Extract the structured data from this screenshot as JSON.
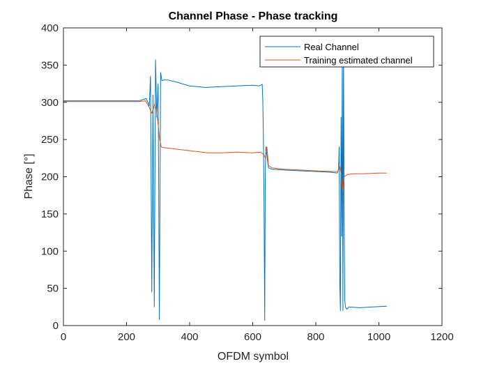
{
  "chart_data": {
    "type": "line",
    "title": "Channel Phase - Phase tracking",
    "xlabel": "OFDM symbol",
    "ylabel": "Phase [°]",
    "xlim": [
      0,
      1200
    ],
    "ylim": [
      0,
      400
    ],
    "xticks": [
      "0",
      "200",
      "400",
      "600",
      "800",
      "1000",
      "1200"
    ],
    "yticks": [
      "0",
      "50",
      "100",
      "150",
      "200",
      "250",
      "300",
      "350",
      "400"
    ],
    "grid": false,
    "legend_position": "top-right",
    "colors": {
      "real": "#0072BD",
      "training": "#D95319"
    },
    "series": [
      {
        "name": "Real Channel",
        "x": [
          0,
          50,
          100,
          150,
          200,
          240,
          262,
          268,
          272,
          276,
          280,
          284,
          288,
          292,
          296,
          300,
          304,
          308,
          312,
          318,
          330,
          360,
          400,
          450,
          500,
          550,
          600,
          620,
          630,
          632,
          634,
          636,
          638,
          640,
          642,
          646,
          650,
          660,
          700,
          750,
          800,
          850,
          868,
          872,
          874,
          876,
          878,
          880,
          882,
          884,
          886,
          888,
          890,
          892,
          894,
          898,
          905,
          940,
          980,
          1025
        ],
        "y": [
          302,
          302,
          302,
          302,
          302,
          302,
          305,
          300,
          295,
          335,
          45,
          310,
          25,
          357,
          280,
          325,
          8,
          340,
          329,
          330,
          330,
          327,
          322,
          320,
          321,
          322,
          323,
          322,
          324,
          300,
          250,
          150,
          7,
          210,
          240,
          225,
          212,
          210,
          209,
          208,
          207,
          206,
          205,
          210,
          240,
          55,
          20,
          280,
          120,
          360,
          20,
          380,
          140,
          35,
          25,
          22,
          25,
          24,
          25,
          26
        ]
      },
      {
        "name": "Training estimated channel",
        "x": [
          0,
          50,
          100,
          150,
          200,
          240,
          260,
          270,
          280,
          290,
          295,
          300,
          305,
          310,
          320,
          340,
          380,
          420,
          460,
          500,
          550,
          600,
          625,
          635,
          640,
          645,
          650,
          660,
          700,
          750,
          800,
          850,
          870,
          875,
          880,
          885,
          890,
          900,
          920,
          950,
          1000,
          1025
        ],
        "y": [
          301,
          301,
          301,
          301,
          301,
          301,
          302,
          295,
          285,
          298,
          290,
          270,
          250,
          240,
          239,
          238,
          236,
          234,
          232,
          232,
          233,
          232,
          233,
          230,
          225,
          240,
          215,
          212,
          210,
          209,
          208,
          207,
          207,
          215,
          205,
          180,
          200,
          203,
          204,
          204,
          205,
          205
        ]
      }
    ]
  }
}
